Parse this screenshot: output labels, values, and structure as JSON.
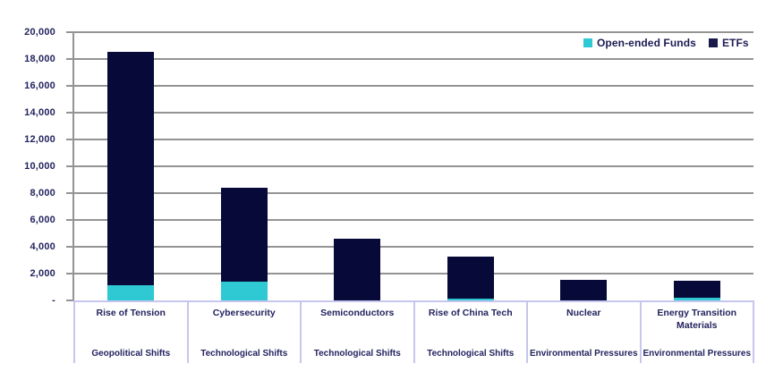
{
  "chart_data": {
    "type": "bar",
    "stacked": true,
    "title": "",
    "categories": [
      {
        "label": "Rise of Tension",
        "group": "Geopolitical Shifts"
      },
      {
        "label": "Cybersecurity",
        "group": "Technological Shifts"
      },
      {
        "label": "Semiconductors",
        "group": "Technological Shifts"
      },
      {
        "label": "Rise of China Tech",
        "group": "Technological Shifts"
      },
      {
        "label": "Nuclear",
        "group": "Environmental Pressures"
      },
      {
        "label": "Energy Transition Materials",
        "group": "Environmental Pressures"
      }
    ],
    "series": [
      {
        "name": "Open-ended Funds",
        "color": "#2ec9d3",
        "values": [
          1100,
          1400,
          0,
          150,
          0,
          200
        ]
      },
      {
        "name": "ETFs",
        "color": "#070a38",
        "values": [
          17400,
          7000,
          4600,
          3100,
          1500,
          1250
        ]
      }
    ],
    "totals": [
      18500,
      8400,
      4600,
      3250,
      1500,
      1450
    ],
    "y_axis": {
      "min": 0,
      "max": 20000,
      "step": 2000,
      "tick_labels": [
        "-",
        "2,000",
        "4,000",
        "6,000",
        "8,000",
        "10,000",
        "12,000",
        "14,000",
        "16,000",
        "18,000",
        "20,000"
      ]
    },
    "legend_position": "top-right",
    "grid": true
  },
  "colors": {
    "background": "#ffffff",
    "gridline": "#949494",
    "axis_line": "#949494",
    "baseline_divider": "#c6c6ee",
    "text": "#23235f",
    "open_ended_funds": "#2ec9d3",
    "etfs": "#070a38"
  }
}
